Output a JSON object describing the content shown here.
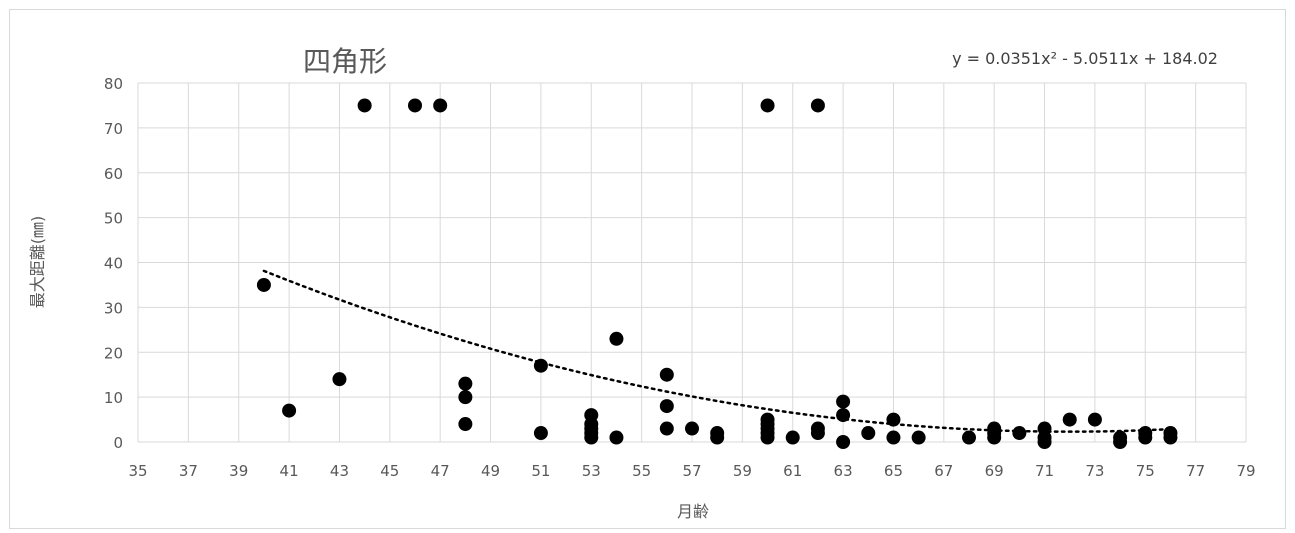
{
  "chart_data": {
    "type": "scatter",
    "title": "四角形",
    "xlabel": "月齢",
    "ylabel": "最大距離(㎜)",
    "xlim": [
      35,
      79
    ],
    "ylim": [
      0,
      80
    ],
    "xticks": [
      35,
      37,
      39,
      41,
      43,
      45,
      47,
      49,
      51,
      53,
      55,
      57,
      59,
      61,
      63,
      65,
      67,
      69,
      71,
      73,
      75,
      77,
      79
    ],
    "yticks": [
      0,
      10,
      20,
      30,
      40,
      50,
      60,
      70,
      80
    ],
    "grid": true,
    "trendline": {
      "type": "polynomial",
      "order": 2,
      "coefficients": [
        0.0351,
        -5.0511,
        184.02
      ],
      "x_range": [
        40,
        76
      ],
      "equation_label": "y = 0.0351x² - 5.0511x + 184.02"
    },
    "points": [
      [
        40,
        35
      ],
      [
        41,
        7
      ],
      [
        43,
        14
      ],
      [
        44,
        75
      ],
      [
        46,
        75
      ],
      [
        47,
        75
      ],
      [
        48,
        13
      ],
      [
        48,
        10
      ],
      [
        48,
        4
      ],
      [
        51,
        17
      ],
      [
        51,
        2
      ],
      [
        53,
        6
      ],
      [
        53,
        4
      ],
      [
        53,
        3
      ],
      [
        53,
        2
      ],
      [
        53,
        1
      ],
      [
        54,
        23
      ],
      [
        54,
        1
      ],
      [
        56,
        15
      ],
      [
        56,
        8
      ],
      [
        56,
        3
      ],
      [
        57,
        3
      ],
      [
        58,
        2
      ],
      [
        58,
        1
      ],
      [
        60,
        75
      ],
      [
        60,
        5
      ],
      [
        60,
        4
      ],
      [
        60,
        3
      ],
      [
        60,
        2
      ],
      [
        60,
        1
      ],
      [
        61,
        1
      ],
      [
        62,
        75
      ],
      [
        62,
        3
      ],
      [
        62,
        2
      ],
      [
        63,
        9
      ],
      [
        63,
        6
      ],
      [
        63,
        0
      ],
      [
        64,
        2
      ],
      [
        65,
        5
      ],
      [
        65,
        1
      ],
      [
        66,
        1
      ],
      [
        68,
        1
      ],
      [
        69,
        3
      ],
      [
        69,
        2
      ],
      [
        69,
        1
      ],
      [
        70,
        2
      ],
      [
        71,
        3
      ],
      [
        71,
        1
      ],
      [
        71,
        0
      ],
      [
        72,
        5
      ],
      [
        73,
        5
      ],
      [
        74,
        1
      ],
      [
        74,
        0
      ],
      [
        75,
        2
      ],
      [
        75,
        1
      ],
      [
        76,
        2
      ],
      [
        76,
        1
      ]
    ],
    "marker_color": "#000000",
    "grid_color": "#d9d9d9",
    "trend_color": "#000000"
  }
}
